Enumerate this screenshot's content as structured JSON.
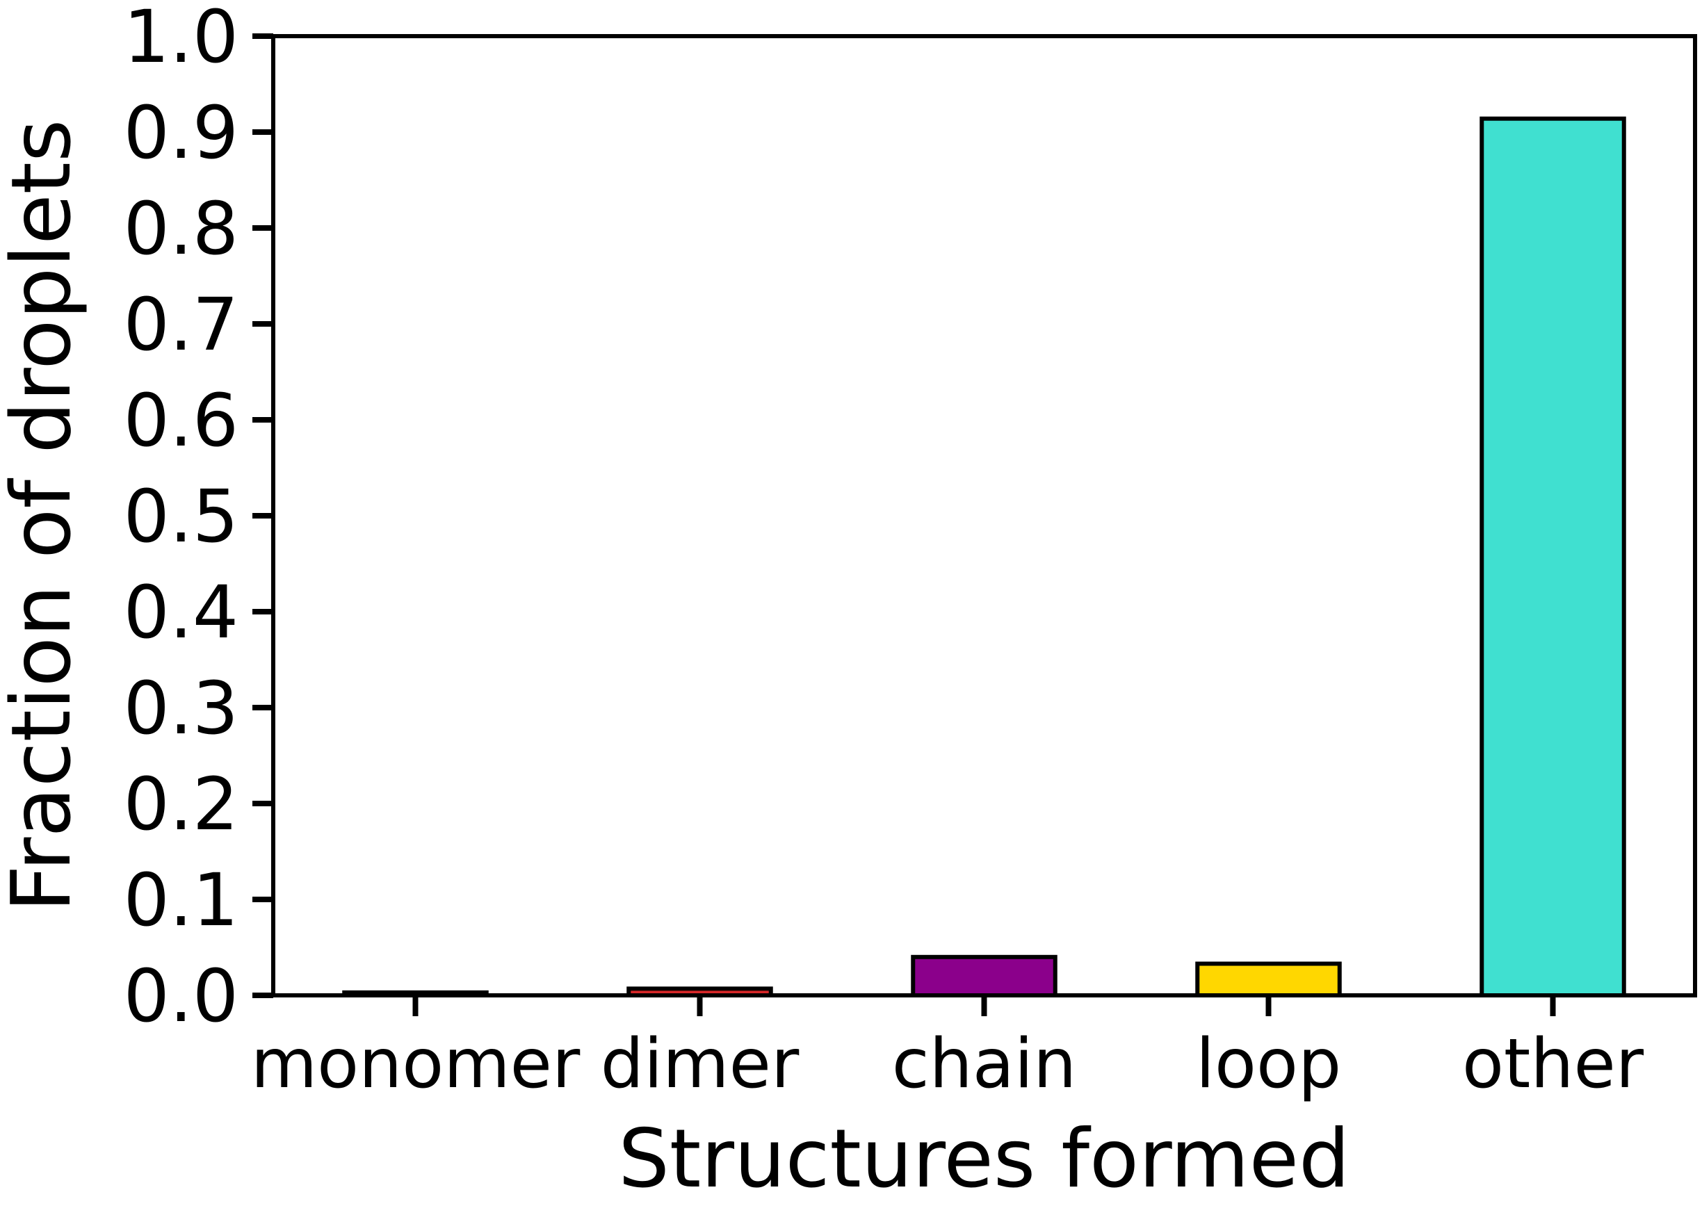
{
  "chart_data": {
    "type": "bar",
    "title": "",
    "xlabel": "Structures formed",
    "ylabel": "Fraction of droplets",
    "categories": [
      "monomer",
      "dimer",
      "chain",
      "loop",
      "other"
    ],
    "values": [
      0.003,
      0.007,
      0.04,
      0.033,
      0.914
    ],
    "colors": [
      "#d62728",
      "#d62728",
      "#8b008b",
      "#ffd700",
      "#40e0d0"
    ],
    "ylim": [
      0.0,
      1.0
    ],
    "yticks": [
      "0.0",
      "0.1",
      "0.2",
      "0.3",
      "0.4",
      "0.5",
      "0.6",
      "0.7",
      "0.8",
      "0.9",
      "1.0"
    ],
    "grid": false,
    "legend": "none"
  }
}
